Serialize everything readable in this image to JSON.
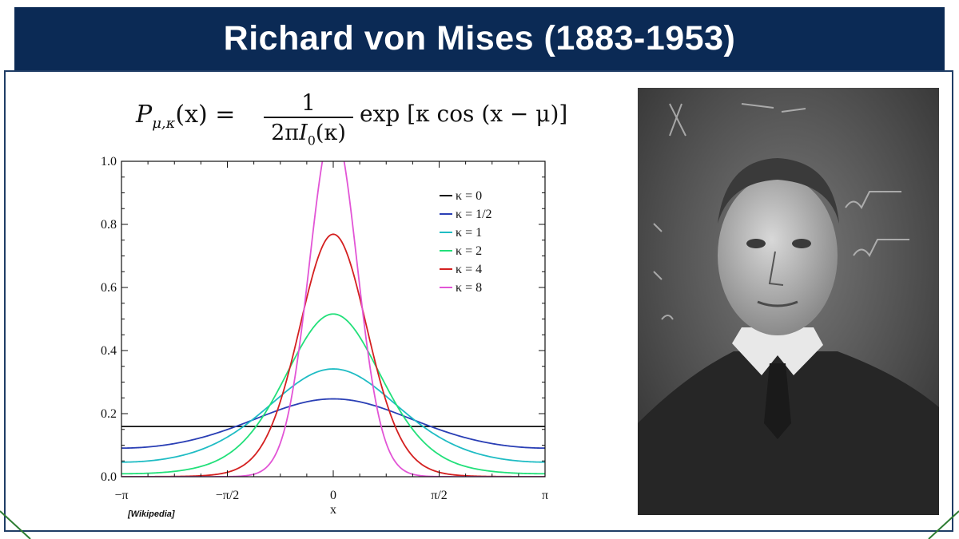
{
  "slide": {
    "title": "Richard von Mises (1883-1953)",
    "source_note": "[Wikipedia]",
    "colors": {
      "title_bar": "#0b2a55",
      "frame": "#1f3d66",
      "corner_accent": "#2e7d32"
    }
  },
  "formula": {
    "lhs": "P",
    "lhs_sub": "μ,κ",
    "lhs_arg": "(x) =",
    "numerator": "1",
    "den_pre": "2π",
    "den_I": "I",
    "den_sub": "0",
    "den_post": "(κ)",
    "rhs": "exp [κ cos (x − μ)]"
  },
  "chart_data": {
    "type": "line",
    "title": "",
    "xlabel": "x",
    "ylabel": "",
    "xlim": [
      -3.14159,
      3.14159
    ],
    "ylim": [
      0,
      1.0
    ],
    "x_ticks": [
      -3.14159,
      -1.5708,
      0,
      1.5708,
      3.14159
    ],
    "x_tick_labels": [
      "−π",
      "−π/2",
      "0",
      "π/2",
      "π"
    ],
    "y_ticks": [
      0,
      0.2,
      0.4,
      0.6,
      0.8,
      1.0
    ],
    "y_tick_labels": [
      "0.0",
      "0.2",
      "0.4",
      "0.6",
      "0.8",
      "1.0"
    ],
    "legend_position": "top-right",
    "series": [
      {
        "name": "κ = 0",
        "kappa": 0,
        "color": "#111111"
      },
      {
        "name": "κ = 1/2",
        "kappa": 0.5,
        "color": "#2a3fb5"
      },
      {
        "name": "κ = 1",
        "kappa": 1,
        "color": "#1fbcc4"
      },
      {
        "name": "κ = 2",
        "kappa": 2,
        "color": "#22e07a"
      },
      {
        "name": "κ = 4",
        "kappa": 4,
        "color": "#d42020"
      },
      {
        "name": "κ = 8",
        "kappa": 8,
        "color": "#e255d6"
      }
    ],
    "function": "P(x) = exp(κ·cos(x − μ)) / (2π·I0(κ)), μ = 0"
  },
  "photo": {
    "icon": "portrait-photo"
  }
}
